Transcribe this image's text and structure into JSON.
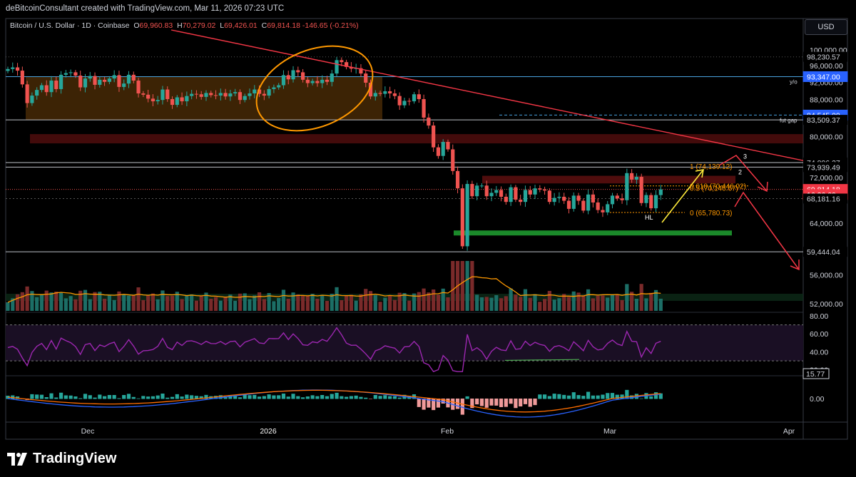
{
  "header": {
    "credit": "deBitcoinConsultant created with TradingView.com, Mar 11, 2026 07:23 UTC",
    "symbol": "Bitcoin / U.S. Dollar · 1D · Coinbase",
    "ohlc": {
      "o_label": "O",
      "o": "69,960.83",
      "h_label": "H",
      "h": "70,279.02",
      "l_label": "L",
      "l": "69,426.01",
      "c_label": "C",
      "c": "69,814.18",
      "change": "-146.65 (-0.21%)"
    }
  },
  "currency_button": "USD",
  "brand": "TradingView",
  "colors": {
    "up": "#26a69a",
    "down": "#ef5350",
    "background": "#000000",
    "trendline": "#f23645",
    "ellipse": "#ff9800",
    "box_fill": "#6d3f0a",
    "demand_zone": "#1b8a2a",
    "resistance_zone": "#7a1414",
    "fib": "#ff9800",
    "yellow_arrow": "#ffeb3b",
    "rsi": "#9c27b0",
    "ma": "#ff9800",
    "macd": "#2962ff",
    "signal": "#ff6d00"
  },
  "chart_data": [
    {
      "type": "candlestick",
      "title": "Bitcoin / U.S. Dollar · 1D · Coinbase",
      "ylim": [
        50500,
        101500
      ],
      "y_scale": "log",
      "x_ticks": [
        "Dec",
        "2026",
        "Feb",
        "Mar",
        "Apr"
      ],
      "y_ticks": [
        "100,000.00",
        "96,000.00",
        "92,000.00",
        "88,000.00",
        "80,000.00",
        "72,000.00",
        "64,000.00",
        "56,000.00",
        "52,000.00"
      ],
      "price_tags": [
        {
          "label": "98,230.57",
          "value": 98230.57,
          "style": "plain"
        },
        {
          "label": "93,412.36",
          "value": 93412.36,
          "style": "plain"
        },
        {
          "label": "93,347.00",
          "value": 93347,
          "style": "blue"
        },
        {
          "label": "84,545.00",
          "value": 84545,
          "style": "blue"
        },
        {
          "label": "83,509.37",
          "value": 83509.37,
          "style": "plain"
        },
        {
          "label": "74,806.27",
          "value": 74806.27,
          "style": "plain"
        },
        {
          "label": "73,939.49",
          "value": 73939.49,
          "style": "plain"
        },
        {
          "label": "69,814.18",
          "value": 69814.18,
          "style": "red"
        },
        {
          "label": "16:36:09",
          "value": 68900,
          "style": "red"
        },
        {
          "label": "68,181.16",
          "value": 68181.16,
          "style": "plain"
        },
        {
          "label": "59,444.04",
          "value": 59444.04,
          "style": "plain"
        }
      ],
      "annotations": [
        "y/o",
        "fut gap",
        "1 (74,139.12)",
        "0.618 (70,446.02)",
        "0.5 (70,146.67)",
        "0 (65,780.73)",
        "HL",
        "2",
        "3"
      ],
      "closes": [
        95200,
        95600,
        94800,
        91500,
        87200,
        88900,
        90200,
        91300,
        89700,
        92400,
        90400,
        93800,
        94200,
        94400,
        93600,
        90800,
        92900,
        93500,
        91400,
        92600,
        92100,
        92900,
        93700,
        90900,
        91700,
        93800,
        92400,
        89400,
        89100,
        88200,
        87600,
        87900,
        90300,
        88100,
        86800,
        88500,
        87600,
        88800,
        89300,
        89200,
        88600,
        89500,
        89000,
        88900,
        89500,
        88700,
        89400,
        89700,
        87900,
        88800,
        89400,
        90300,
        89300,
        88900,
        90400,
        90800,
        91300,
        93700,
        92700,
        94900,
        94400,
        92600,
        91800,
        92300,
        91800,
        92600,
        92100,
        94100,
        97400,
        96900,
        95700,
        95300,
        95400,
        94100,
        91900,
        88700,
        89500,
        89300,
        89900,
        89400,
        88800,
        86700,
        87700,
        87600,
        89200,
        88100,
        84000,
        82300,
        77800,
        76100,
        78900,
        77400,
        73200,
        70000,
        60300,
        70800,
        68600,
        70500,
        70500,
        68600,
        69200,
        69700,
        68500,
        67600,
        70200,
        68000,
        67600,
        69700,
        68900,
        70000,
        69800,
        69600,
        67600,
        68300,
        68500,
        67800,
        66400,
        68700,
        67800,
        66100,
        68900,
        67500,
        66200,
        65800,
        67200,
        68700,
        68200,
        67900,
        72800,
        71600,
        72100,
        67400,
        68800,
        66500,
        68800,
        69814
      ],
      "volume_ma": "orange line over volume",
      "sub_panes": [
        {
          "name": "RSI",
          "y_ticks": [
            "80.00",
            "60.00",
            "40.00",
            "20.00"
          ],
          "badge": "15.77"
        },
        {
          "name": "MACD",
          "y_ticks": [
            "0.00"
          ]
        }
      ]
    }
  ]
}
